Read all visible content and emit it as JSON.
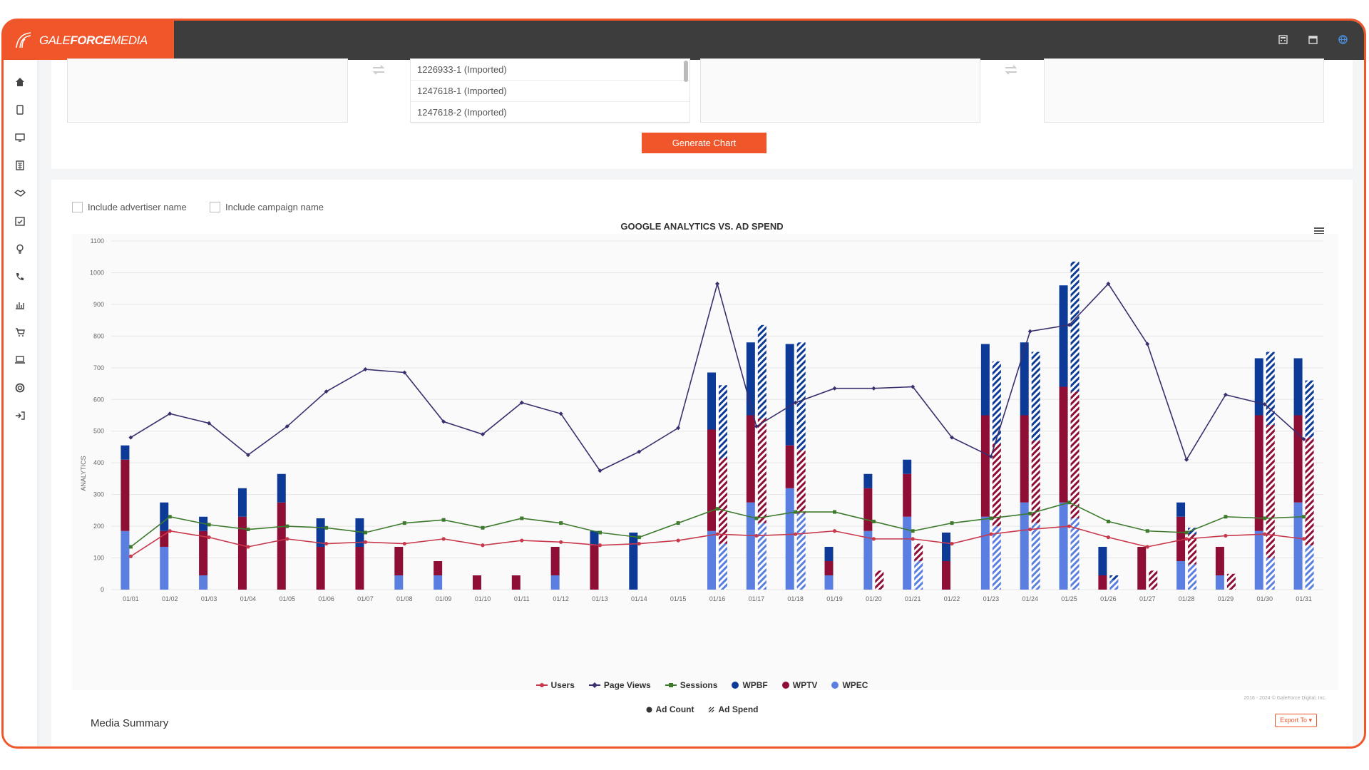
{
  "app": {
    "logo_text_1": "GALE",
    "logo_text_2": "FORCE",
    "logo_text_3": "MEDIA"
  },
  "header_icons": [
    "calculator-icon",
    "calendar-icon",
    "globe-icon"
  ],
  "sidebar": [
    "home-icon",
    "tablet-icon",
    "monitor-icon",
    "calculator-icon",
    "handshake-icon",
    "calendar-check-icon",
    "lightbulb-icon",
    "phone-icon",
    "bar-chart-icon",
    "cart-icon",
    "laptop-icon",
    "lifebuoy-icon",
    "sign-out-icon"
  ],
  "selector": {
    "list_items": [
      "1226933-1 (Imported)",
      "1247618-1 (Imported)",
      "1247618-2 (Imported)"
    ],
    "generate_label": "Generate Chart"
  },
  "options": {
    "include_advertiser": "Include advertiser name",
    "include_campaign": "Include campaign name"
  },
  "chart_data": {
    "type": "bar",
    "title": "GOOGLE ANALYTICS VS. AD SPEND",
    "ylabel": "ANALYTICS",
    "xlabel": "",
    "ylim": [
      0,
      1100
    ],
    "yticks": [
      0,
      100,
      200,
      300,
      400,
      500,
      600,
      700,
      800,
      900,
      1000,
      1100
    ],
    "categories": [
      "01/01",
      "01/02",
      "01/03",
      "01/04",
      "01/05",
      "01/06",
      "01/07",
      "01/08",
      "01/09",
      "01/10",
      "01/11",
      "01/12",
      "01/13",
      "01/14",
      "01/15",
      "01/16",
      "01/17",
      "01/18",
      "01/19",
      "01/20",
      "01/21",
      "01/22",
      "01/23",
      "01/24",
      "01/25",
      "01/26",
      "01/27",
      "01/28",
      "01/29",
      "01/30",
      "01/31"
    ],
    "bar_series_count": [
      {
        "name": "WPEC",
        "color": "#5b7fe0",
        "values": [
          185,
          135,
          45,
          0,
          0,
          0,
          0,
          45,
          45,
          0,
          0,
          45,
          0,
          0,
          0,
          185,
          275,
          320,
          45,
          185,
          230,
          0,
          230,
          275,
          275,
          0,
          0,
          90,
          45,
          185,
          275
        ]
      },
      {
        "name": "WPTV",
        "color": "#8f0e36",
        "values": [
          225,
          50,
          140,
          230,
          275,
          135,
          135,
          90,
          45,
          45,
          45,
          90,
          140,
          0,
          0,
          320,
          275,
          135,
          45,
          135,
          135,
          90,
          320,
          275,
          365,
          45,
          135,
          140,
          90,
          365,
          275
        ]
      },
      {
        "name": "WPBF",
        "color": "#0d3a96",
        "values": [
          45,
          90,
          45,
          90,
          90,
          90,
          90,
          0,
          0,
          0,
          0,
          0,
          45,
          180,
          0,
          180,
          230,
          320,
          45,
          45,
          45,
          90,
          225,
          230,
          320,
          90,
          0,
          45,
          0,
          180,
          180
        ]
      }
    ],
    "bar_series_spend": [
      {
        "name": "WPEC",
        "values": [
          0,
          0,
          0,
          0,
          0,
          0,
          0,
          0,
          0,
          0,
          0,
          0,
          0,
          0,
          0,
          145,
          210,
          240,
          0,
          0,
          90,
          0,
          200,
          210,
          225,
          30,
          0,
          80,
          0,
          100,
          140
        ]
      },
      {
        "name": "WPTV",
        "values": [
          0,
          0,
          0,
          0,
          0,
          0,
          0,
          0,
          0,
          0,
          0,
          0,
          0,
          0,
          0,
          270,
          330,
          200,
          0,
          60,
          55,
          0,
          260,
          260,
          400,
          0,
          60,
          95,
          50,
          420,
          340
        ]
      },
      {
        "name": "WPBF",
        "values": [
          0,
          0,
          0,
          0,
          0,
          0,
          0,
          0,
          0,
          0,
          0,
          0,
          0,
          0,
          0,
          230,
          295,
          340,
          0,
          0,
          0,
          0,
          260,
          280,
          410,
          15,
          0,
          20,
          0,
          230,
          180
        ]
      }
    ],
    "line_series": [
      {
        "name": "Users",
        "color": "#c8394d",
        "values": [
          105,
          185,
          165,
          135,
          160,
          145,
          150,
          145,
          160,
          140,
          155,
          150,
          140,
          145,
          155,
          175,
          170,
          175,
          185,
          160,
          160,
          145,
          175,
          190,
          200,
          165,
          135,
          160,
          170,
          175,
          160
        ]
      },
      {
        "name": "Page Views",
        "color": "#3a2f6e",
        "values": [
          480,
          555,
          525,
          425,
          515,
          625,
          695,
          685,
          530,
          490,
          590,
          555,
          375,
          435,
          510,
          965,
          515,
          590,
          635,
          635,
          640,
          480,
          420,
          815,
          835,
          965,
          775,
          410,
          615,
          585,
          475
        ]
      },
      {
        "name": "Sessions",
        "color": "#3d7a2d",
        "values": [
          135,
          230,
          205,
          190,
          200,
          195,
          180,
          210,
          220,
          195,
          225,
          210,
          180,
          165,
          210,
          255,
          225,
          245,
          245,
          215,
          185,
          210,
          225,
          240,
          275,
          215,
          185,
          180,
          230,
          225,
          230
        ]
      }
    ],
    "legend": [
      "Users",
      "Page Views",
      "Sessions",
      "WPBF",
      "WPTV",
      "WPEC"
    ],
    "legend2": [
      "Ad Count",
      "Ad Spend"
    ],
    "credits": "2016 - 2024 © GaleForce Digital, Inc."
  },
  "footer": {
    "export_label": "Export To",
    "section_title": "Media Summary"
  }
}
